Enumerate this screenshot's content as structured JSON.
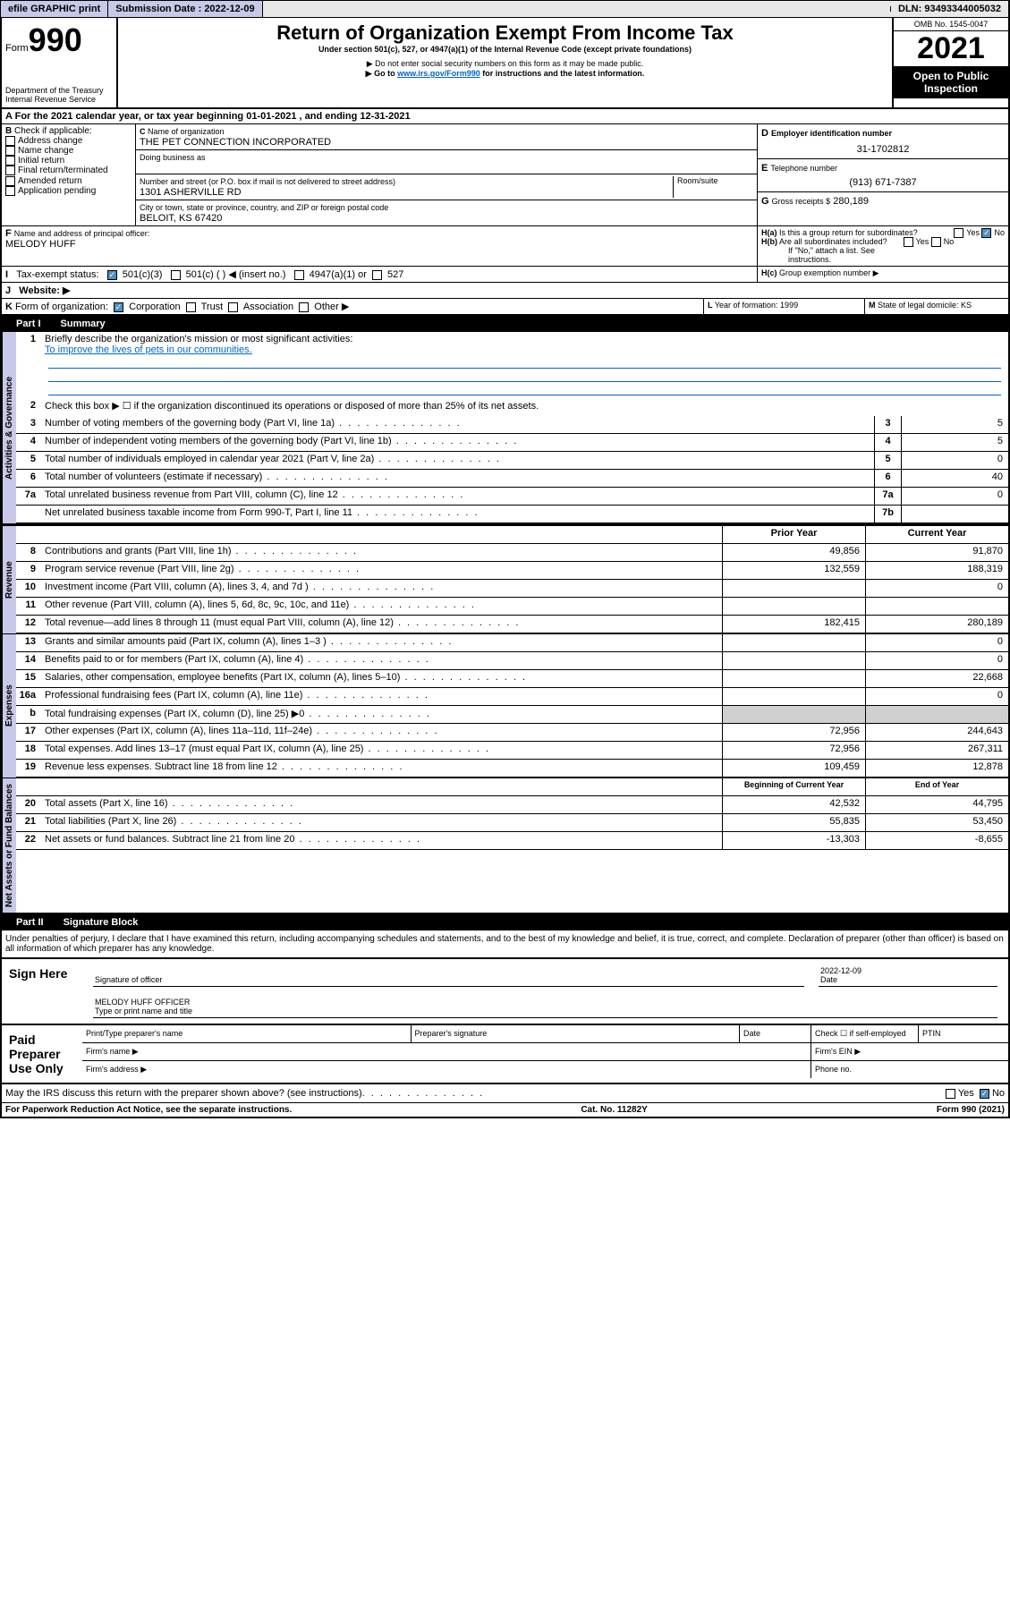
{
  "topbar": {
    "efile": "efile GRAPHIC print",
    "submission": "Submission Date : 2022-12-09",
    "dln": "DLN: 93493344005032"
  },
  "header": {
    "form_word": "Form",
    "form_num": "990",
    "dept": "Department of the Treasury",
    "irs": "Internal Revenue Service",
    "title": "Return of Organization Exempt From Income Tax",
    "sub1": "Under section 501(c), 527, or 4947(a)(1) of the Internal Revenue Code (except private foundations)",
    "sub2": "▶ Do not enter social security numbers on this form as it may be made public.",
    "sub3a": "▶ Go to ",
    "sub3link": "www.irs.gov/Form990",
    "sub3b": " for instructions and the latest information.",
    "omb": "OMB No. 1545-0047",
    "year": "2021",
    "inspect": "Open to Public Inspection"
  },
  "sectionA": {
    "cal_year": "For the 2021 calendar year, or tax year beginning 01-01-2021   , and ending 12-31-2021",
    "check_label": "Check if applicable:",
    "opts": [
      "Address change",
      "Name change",
      "Initial return",
      "Final return/terminated",
      "Amended return",
      "Application pending"
    ],
    "name_label": "Name of organization",
    "name": "THE PET CONNECTION INCORPORATED",
    "dba": "Doing business as",
    "street_label": "Number and street (or P.O. box if mail is not delivered to street address)",
    "room": "Room/suite",
    "street": "1301 ASHERVILLE RD",
    "city_label": "City or town, state or province, country, and ZIP or foreign postal code",
    "city": "BELOIT, KS  67420",
    "d_label": "Employer identification number",
    "d_val": "31-1702812",
    "e_label": "Telephone number",
    "e_val": "(913) 671-7387",
    "g_label": "Gross receipts $",
    "g_val": "280,189",
    "f_label": "Name and address of principal officer:",
    "f_val": "MELODY HUFF",
    "ha": "Is this a group return for subordinates?",
    "hb": "Are all subordinates included?",
    "hb_note": "If \"No,\" attach a list. See instructions.",
    "hc": "Group exemption number ▶",
    "tax_label": "Tax-exempt status:",
    "t1": "501(c)(3)",
    "t2": "501(c) (  ) ◀ (insert no.)",
    "t3": "4947(a)(1) or",
    "t4": "527",
    "website": "Website: ▶",
    "k_label": "Form of organization:",
    "k1": "Corporation",
    "k2": "Trust",
    "k3": "Association",
    "k4": "Other ▶",
    "l": "Year of formation: 1999",
    "m": "State of legal domicile: KS",
    "yes": "Yes",
    "no": "No"
  },
  "part1": {
    "title": "Part I",
    "name": "Summary",
    "vlabels": {
      "gov": "Activities & Governance",
      "rev": "Revenue",
      "exp": "Expenses",
      "net": "Net Assets or Fund Balances"
    },
    "q1": "Briefly describe the organization's mission or most significant activities:",
    "q1a": "To improve the lives of pets in our communities.",
    "q2": "Check this box ▶ ☐ if the organization discontinued its operations or disposed of more than 25% of its net assets.",
    "rows_gov": [
      {
        "n": "3",
        "t": "Number of voting members of the governing body (Part VI, line 1a)",
        "k": "3",
        "v": "5"
      },
      {
        "n": "4",
        "t": "Number of independent voting members of the governing body (Part VI, line 1b)",
        "k": "4",
        "v": "5"
      },
      {
        "n": "5",
        "t": "Total number of individuals employed in calendar year 2021 (Part V, line 2a)",
        "k": "5",
        "v": "0"
      },
      {
        "n": "6",
        "t": "Total number of volunteers (estimate if necessary)",
        "k": "6",
        "v": "40"
      },
      {
        "n": "7a",
        "t": "Total unrelated business revenue from Part VIII, column (C), line 12",
        "k": "7a",
        "v": "0"
      },
      {
        "n": "",
        "t": "Net unrelated business taxable income from Form 990-T, Part I, line 11",
        "k": "7b",
        "v": ""
      }
    ],
    "col_prior": "Prior Year",
    "col_curr": "Current Year",
    "rows_rev": [
      {
        "n": "8",
        "t": "Contributions and grants (Part VIII, line 1h)",
        "p": "49,856",
        "c": "91,870"
      },
      {
        "n": "9",
        "t": "Program service revenue (Part VIII, line 2g)",
        "p": "132,559",
        "c": "188,319"
      },
      {
        "n": "10",
        "t": "Investment income (Part VIII, column (A), lines 3, 4, and 7d )",
        "p": "",
        "c": "0"
      },
      {
        "n": "11",
        "t": "Other revenue (Part VIII, column (A), lines 5, 6d, 8c, 9c, 10c, and 11e)",
        "p": "",
        "c": ""
      },
      {
        "n": "12",
        "t": "Total revenue—add lines 8 through 11 (must equal Part VIII, column (A), line 12)",
        "p": "182,415",
        "c": "280,189"
      }
    ],
    "rows_exp": [
      {
        "n": "13",
        "t": "Grants and similar amounts paid (Part IX, column (A), lines 1–3 )",
        "p": "",
        "c": "0"
      },
      {
        "n": "14",
        "t": "Benefits paid to or for members (Part IX, column (A), line 4)",
        "p": "",
        "c": "0"
      },
      {
        "n": "15",
        "t": "Salaries, other compensation, employee benefits (Part IX, column (A), lines 5–10)",
        "p": "",
        "c": "22,668"
      },
      {
        "n": "16a",
        "t": "Professional fundraising fees (Part IX, column (A), line 11e)",
        "p": "",
        "c": "0"
      },
      {
        "n": "b",
        "t": "Total fundraising expenses (Part IX, column (D), line 25) ▶0",
        "p": "GRAY",
        "c": "GRAY"
      },
      {
        "n": "17",
        "t": "Other expenses (Part IX, column (A), lines 11a–11d, 11f–24e)",
        "p": "72,956",
        "c": "244,643"
      },
      {
        "n": "18",
        "t": "Total expenses. Add lines 13–17 (must equal Part IX, column (A), line 25)",
        "p": "72,956",
        "c": "267,311"
      },
      {
        "n": "19",
        "t": "Revenue less expenses. Subtract line 18 from line 12",
        "p": "109,459",
        "c": "12,878"
      }
    ],
    "col_begin": "Beginning of Current Year",
    "col_end": "End of Year",
    "rows_net": [
      {
        "n": "20",
        "t": "Total assets (Part X, line 16)",
        "p": "42,532",
        "c": "44,795"
      },
      {
        "n": "21",
        "t": "Total liabilities (Part X, line 26)",
        "p": "55,835",
        "c": "53,450"
      },
      {
        "n": "22",
        "t": "Net assets or fund balances. Subtract line 21 from line 20",
        "p": "-13,303",
        "c": "-8,655"
      }
    ]
  },
  "part2": {
    "title": "Part II",
    "name": "Signature Block",
    "penalty": "Under penalties of perjury, I declare that I have examined this return, including accompanying schedules and statements, and to the best of my knowledge and belief, it is true, correct, and complete. Declaration of preparer (other than officer) is based on all information of which preparer has any knowledge.",
    "sign_here": "Sign Here",
    "sig_off": "Signature of officer",
    "sig_date": "Date",
    "date_val": "2022-12-09",
    "name_val": "MELODY HUFF  OFFICER",
    "name_lbl": "Type or print name and title",
    "paid": "Paid Preparer Use Only",
    "pp_name": "Print/Type preparer's name",
    "pp_sig": "Preparer's signature",
    "pp_date": "Date",
    "pp_check": "Check ☐ if self-employed",
    "ptin": "PTIN",
    "firm_name": "Firm's name  ▶",
    "firm_ein": "Firm's EIN ▶",
    "firm_addr": "Firm's address ▶",
    "phone": "Phone no.",
    "discuss": "May the IRS discuss this return with the preparer shown above? (see instructions)"
  },
  "footer": {
    "paperwork": "For Paperwork Reduction Act Notice, see the separate instructions.",
    "catno": "Cat. No. 11282Y",
    "formno": "Form 990 (2021)"
  }
}
